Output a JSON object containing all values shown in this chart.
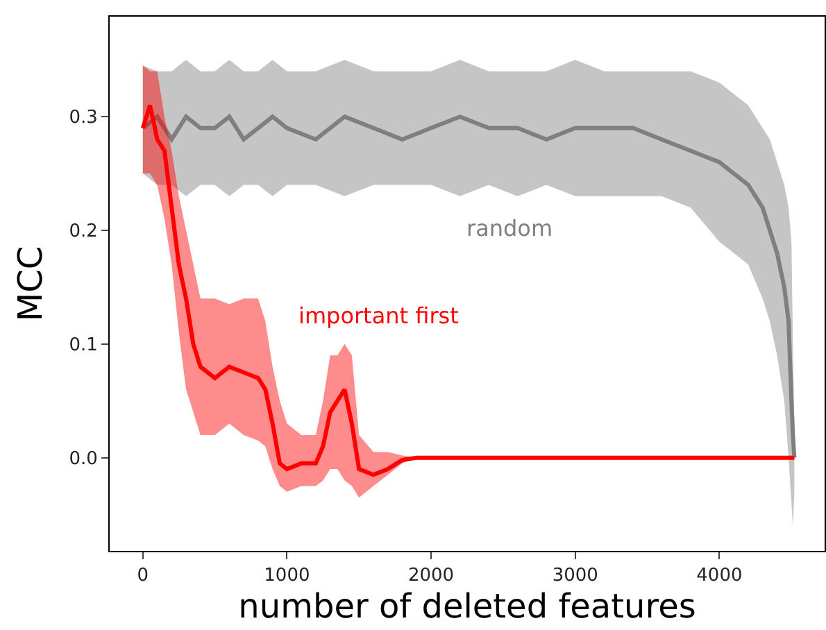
{
  "chart_data": {
    "type": "line",
    "xlabel": "number of deleted features",
    "ylabel": "MCC",
    "xlim": [
      -230,
      4730
    ],
    "ylim": [
      -0.082,
      0.388
    ],
    "xticks": [
      0,
      1000,
      2000,
      3000,
      4000
    ],
    "yticks": [
      {
        "value": 0,
        "label": "0.0"
      },
      {
        "value": 0.1,
        "label": "0.1"
      },
      {
        "value": 0.2,
        "label": "0.2"
      },
      {
        "value": 0.3,
        "label": "0.3"
      }
    ],
    "grid": false,
    "legend": false,
    "marker": "none",
    "line_style": "solid",
    "series": [
      {
        "name": "random",
        "color": "#7f7f7f",
        "x": [
          0,
          100,
          200,
          300,
          400,
          500,
          600,
          700,
          800,
          900,
          1000,
          1200,
          1400,
          1600,
          1800,
          2000,
          2200,
          2400,
          2600,
          2800,
          3000,
          3200,
          3400,
          3600,
          3800,
          4000,
          4100,
          4200,
          4300,
          4350,
          4400,
          4450,
          4480,
          4500,
          4510,
          4520
        ],
        "values": [
          0.29,
          0.3,
          0.28,
          0.3,
          0.29,
          0.29,
          0.3,
          0.28,
          0.29,
          0.3,
          0.29,
          0.28,
          0.3,
          0.29,
          0.28,
          0.29,
          0.3,
          0.29,
          0.29,
          0.28,
          0.29,
          0.29,
          0.29,
          0.28,
          0.27,
          0.26,
          0.25,
          0.24,
          0.22,
          0.2,
          0.18,
          0.15,
          0.12,
          0.05,
          0.02,
          0.0
        ],
        "upper": [
          0.345,
          0.34,
          0.34,
          0.35,
          0.34,
          0.34,
          0.35,
          0.34,
          0.34,
          0.35,
          0.34,
          0.34,
          0.35,
          0.34,
          0.34,
          0.34,
          0.35,
          0.34,
          0.34,
          0.34,
          0.35,
          0.34,
          0.34,
          0.34,
          0.34,
          0.33,
          0.32,
          0.31,
          0.29,
          0.28,
          0.26,
          0.24,
          0.22,
          0.19,
          0.1,
          0.03
        ],
        "lower": [
          0.25,
          0.24,
          0.24,
          0.23,
          0.24,
          0.24,
          0.23,
          0.24,
          0.24,
          0.23,
          0.24,
          0.24,
          0.23,
          0.24,
          0.24,
          0.24,
          0.23,
          0.24,
          0.23,
          0.24,
          0.23,
          0.23,
          0.23,
          0.23,
          0.22,
          0.19,
          0.18,
          0.17,
          0.14,
          0.12,
          0.09,
          0.05,
          0.0,
          -0.04,
          -0.06,
          -0.03
        ]
      },
      {
        "name": "important first",
        "color": "#ff0000",
        "x": [
          0,
          50,
          100,
          150,
          200,
          250,
          300,
          350,
          400,
          500,
          600,
          700,
          800,
          850,
          900,
          950,
          1000,
          1100,
          1200,
          1250,
          1300,
          1350,
          1400,
          1450,
          1500,
          1600,
          1700,
          1800,
          1900,
          4520
        ],
        "values": [
          0.29,
          0.31,
          0.28,
          0.27,
          0.22,
          0.17,
          0.14,
          0.1,
          0.08,
          0.07,
          0.08,
          0.075,
          0.07,
          0.06,
          0.03,
          -0.005,
          -0.01,
          -0.005,
          -0.005,
          0.01,
          0.04,
          0.05,
          0.06,
          0.03,
          -0.01,
          -0.015,
          -0.01,
          -0.002,
          0,
          0
        ],
        "upper": [
          0.345,
          0.34,
          0.34,
          0.3,
          0.27,
          0.23,
          0.2,
          0.17,
          0.14,
          0.14,
          0.135,
          0.14,
          0.14,
          0.12,
          0.08,
          0.05,
          0.03,
          0.02,
          0.02,
          0.05,
          0.09,
          0.09,
          0.1,
          0.09,
          0.02,
          0.005,
          0.005,
          0.002,
          0,
          0
        ],
        "lower": [
          0.25,
          0.25,
          0.24,
          0.21,
          0.17,
          0.11,
          0.06,
          0.04,
          0.02,
          0.02,
          0.03,
          0.02,
          0.015,
          0.01,
          -0.01,
          -0.025,
          -0.03,
          -0.025,
          -0.025,
          -0.02,
          -0.01,
          -0.01,
          -0.02,
          -0.025,
          -0.035,
          -0.025,
          -0.015,
          -0.005,
          0,
          0
        ]
      }
    ]
  }
}
